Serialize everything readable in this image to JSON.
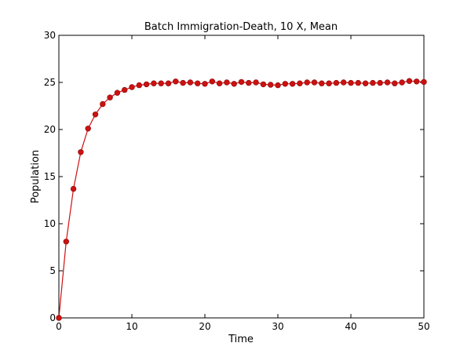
{
  "chart_data": {
    "type": "line",
    "title": "Batch Immigration-Death, 10 X, Mean",
    "xlabel": "Time",
    "ylabel": "Population",
    "xlim": [
      0,
      50
    ],
    "ylim": [
      0,
      30
    ],
    "xticks": [
      0,
      10,
      20,
      30,
      40,
      50
    ],
    "yticks": [
      0,
      5,
      10,
      15,
      20,
      25,
      30
    ],
    "xtick_labels": [
      "0",
      "10",
      "20",
      "30",
      "40",
      "50"
    ],
    "ytick_labels": [
      "0",
      "5",
      "10",
      "15",
      "20",
      "25",
      "30"
    ],
    "grid": false,
    "legend": "none",
    "colors": {
      "series": "#cc1111",
      "axes": "#000000",
      "background": "#ffffff"
    },
    "series": [
      {
        "marker": "circle",
        "x": [
          0,
          1,
          2,
          3,
          4,
          5,
          6,
          7,
          8,
          9,
          10,
          11,
          12,
          13,
          14,
          15,
          16,
          17,
          18,
          19,
          20,
          21,
          22,
          23,
          24,
          25,
          26,
          27,
          28,
          29,
          30,
          31,
          32,
          33,
          34,
          35,
          36,
          37,
          38,
          39,
          40,
          41,
          42,
          43,
          44,
          45,
          46,
          47,
          48,
          49,
          50
        ],
        "y": [
          0,
          8.1,
          13.7,
          17.6,
          20.1,
          21.6,
          22.7,
          23.4,
          23.9,
          24.2,
          24.5,
          24.7,
          24.8,
          24.9,
          24.9,
          24.9,
          25.1,
          24.95,
          25.0,
          24.9,
          24.85,
          25.1,
          24.9,
          25.0,
          24.85,
          25.05,
          24.95,
          25.0,
          24.8,
          24.75,
          24.7,
          24.85,
          24.85,
          24.9,
          25.0,
          25.0,
          24.9,
          24.9,
          24.95,
          25.0,
          24.95,
          24.95,
          24.9,
          24.95,
          24.95,
          25.0,
          24.9,
          25.0,
          25.15,
          25.1,
          25.05
        ]
      }
    ]
  }
}
